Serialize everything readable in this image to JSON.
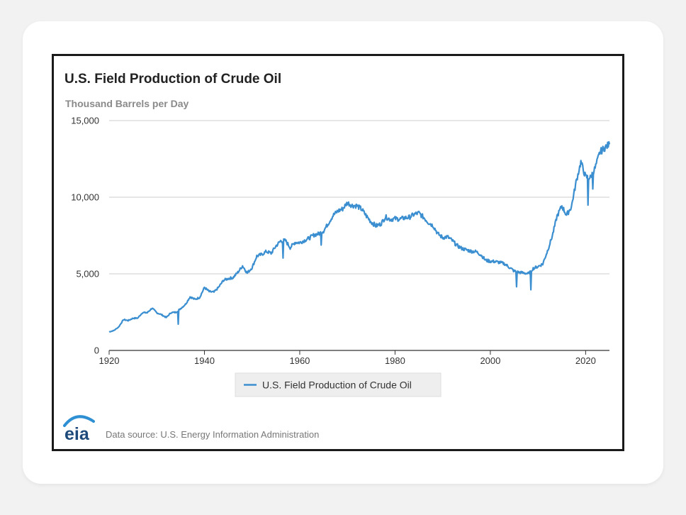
{
  "colors": {
    "series": "#3b8fd0",
    "grid": "#cccccc",
    "axis": "#333333",
    "legend_bg": "#eeeeee",
    "logo_blue": "#1d4a7a",
    "logo_arc": "#2f8fd3"
  },
  "logo": {
    "text": "eia",
    "icon": "eia-logo-icon"
  },
  "source_text": "Data source: U.S. Energy Information Administration",
  "chart_data": {
    "type": "line",
    "title": "U.S. Field Production of Crude Oil",
    "ylabel": "Thousand Barrels per Day",
    "xlabel": "",
    "xlim": [
      1920,
      2025
    ],
    "ylim": [
      0,
      15000
    ],
    "x_ticks": [
      1920,
      1940,
      1960,
      1980,
      2000,
      2020
    ],
    "x_tick_labels": [
      "1920",
      "1940",
      "1960",
      "1980",
      "2000",
      "2020"
    ],
    "y_ticks": [
      0,
      5000,
      10000,
      15000
    ],
    "y_tick_labels": [
      "0",
      "5,000",
      "10,000",
      "15,000"
    ],
    "grid": true,
    "legend": "bottom-center",
    "series": [
      {
        "name": "U.S. Field Production of Crude Oil",
        "x": [
          1920,
          1921,
          1922,
          1923,
          1924,
          1925,
          1926,
          1927,
          1928,
          1929,
          1930,
          1931,
          1932,
          1933,
          1934,
          1935,
          1936,
          1937,
          1938,
          1939,
          1940,
          1941,
          1942,
          1943,
          1944,
          1945,
          1946,
          1947,
          1948,
          1949,
          1950,
          1951,
          1952,
          1953,
          1954,
          1955,
          1956,
          1957,
          1958,
          1959,
          1960,
          1961,
          1962,
          1963,
          1964,
          1965,
          1966,
          1967,
          1968,
          1969,
          1970,
          1971,
          1972,
          1973,
          1974,
          1975,
          1976,
          1977,
          1978,
          1979,
          1980,
          1981,
          1982,
          1983,
          1984,
          1985,
          1986,
          1987,
          1988,
          1989,
          1990,
          1991,
          1992,
          1993,
          1994,
          1995,
          1996,
          1997,
          1998,
          1999,
          2000,
          2001,
          2002,
          2003,
          2004,
          2005,
          2006,
          2007,
          2008,
          2009,
          2010,
          2011,
          2012,
          2013,
          2014,
          2015,
          2016,
          2017,
          2018,
          2019,
          2020,
          2021,
          2022,
          2023,
          2024,
          2025
        ],
        "values": [
          1210,
          1300,
          1530,
          2010,
          1950,
          2100,
          2110,
          2470,
          2460,
          2760,
          2460,
          2330,
          2150,
          2470,
          2490,
          2730,
          3000,
          3500,
          3330,
          3460,
          4110,
          3840,
          3800,
          4130,
          4580,
          4690,
          4750,
          5090,
          5520,
          5050,
          5410,
          6160,
          6260,
          6460,
          6340,
          6810,
          7150,
          7170,
          6710,
          7050,
          7040,
          7180,
          7330,
          7540,
          7610,
          7800,
          8300,
          8810,
          9100,
          9240,
          9640,
          9460,
          9440,
          9210,
          8770,
          8380,
          8130,
          8250,
          8710,
          8550,
          8600,
          8570,
          8650,
          8690,
          8880,
          8970,
          8680,
          8350,
          8140,
          7610,
          7360,
          7420,
          7170,
          6850,
          6660,
          6560,
          6470,
          6450,
          6250,
          5880,
          5820,
          5800,
          5740,
          5650,
          5420,
          5180,
          5100,
          5060,
          5000,
          5350,
          5480,
          5640,
          6500,
          7470,
          8760,
          9430,
          8830,
          9360,
          10990,
          12290,
          11320,
          11280,
          11910,
          12940,
          13230,
          13450
        ]
      }
    ]
  }
}
